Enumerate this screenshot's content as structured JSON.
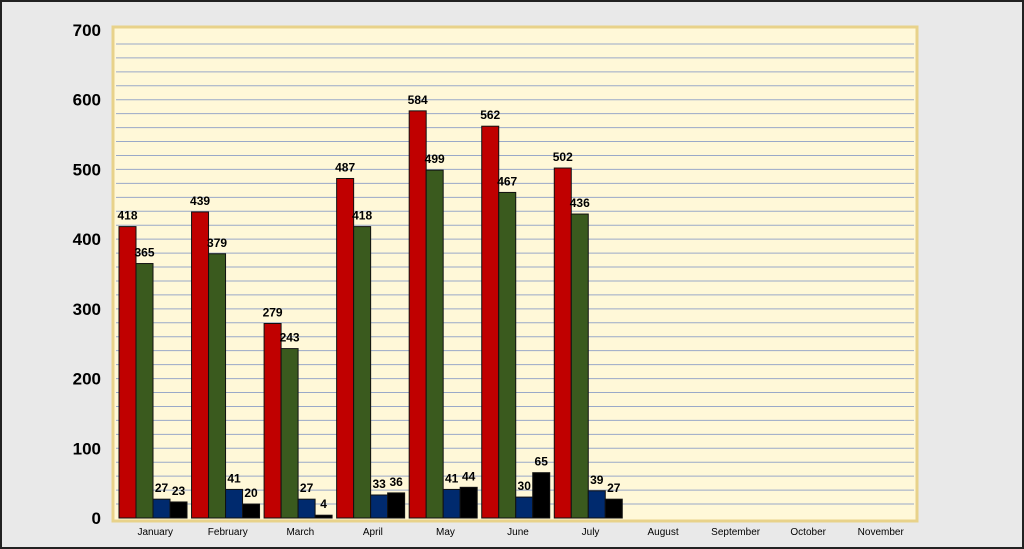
{
  "chart_data": {
    "type": "bar",
    "categories": [
      "January",
      "February",
      "March",
      "April",
      "May",
      "June",
      "July",
      "August",
      "September",
      "October",
      "November"
    ],
    "series": [
      {
        "values": [
          418,
          439,
          279,
          487,
          584,
          562,
          502,
          null,
          null,
          null,
          null
        ],
        "color": "#c00000"
      },
      {
        "values": [
          365,
          379,
          243,
          418,
          499,
          467,
          436,
          null,
          null,
          null,
          null
        ],
        "color": "#3a5a1e"
      },
      {
        "values": [
          27,
          41,
          27,
          33,
          41,
          30,
          39,
          null,
          null,
          null,
          null
        ],
        "color": "#002a6e"
      },
      {
        "values": [
          23,
          20,
          4,
          36,
          44,
          65,
          27,
          null,
          null,
          null,
          null
        ],
        "color": "#000000"
      }
    ],
    "ylim": [
      0,
      700
    ],
    "yticks": [
      0,
      100,
      200,
      300,
      400,
      500,
      600,
      700
    ],
    "grid": true,
    "plot_background": "#fff8d8",
    "gridline_color": "#9aa9c8",
    "plot_border_color": "#e8d28a"
  }
}
